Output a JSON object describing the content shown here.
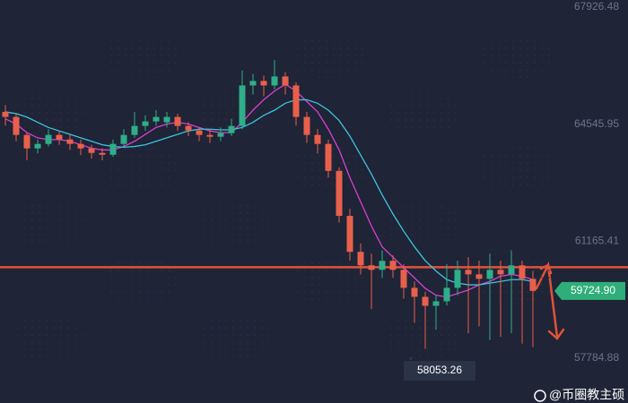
{
  "chart_data": {
    "type": "candlestick",
    "ylim": [
      56484.5,
      68134.5
    ],
    "yticks": [
      67926.48,
      64545.95,
      61165.41,
      57784.88
    ],
    "grid": false,
    "up_color": "#2fae8a",
    "down_color": "#e8604c",
    "candles": [
      [
        64900,
        65100,
        64500,
        64754
      ],
      [
        64754,
        64850,
        64050,
        64234
      ],
      [
        64234,
        64300,
        63500,
        63844
      ],
      [
        63844,
        64100,
        63700,
        63974
      ],
      [
        63974,
        64400,
        63900,
        64234
      ],
      [
        64234,
        64350,
        63950,
        64104
      ],
      [
        64104,
        64250,
        63800,
        63974
      ],
      [
        63974,
        64100,
        63650,
        63844
      ],
      [
        63844,
        63950,
        63550,
        63714
      ],
      [
        63714,
        63850,
        63500,
        63662
      ],
      [
        63662,
        64100,
        63600,
        63974
      ],
      [
        63974,
        64400,
        63900,
        64234
      ],
      [
        64234,
        64900,
        64150,
        64494
      ],
      [
        64494,
        64800,
        64350,
        64624
      ],
      [
        64624,
        64950,
        64500,
        64754
      ],
      [
        64600,
        64900,
        64450,
        64754
      ],
      [
        64754,
        64850,
        64350,
        64494
      ],
      [
        64494,
        64600,
        64200,
        64364
      ],
      [
        64364,
        64450,
        64050,
        64234
      ],
      [
        64234,
        64400,
        64000,
        64182
      ],
      [
        64182,
        64450,
        64050,
        64286
      ],
      [
        64286,
        64700,
        64200,
        64494
      ],
      [
        64494,
        66100,
        64400,
        65664
      ],
      [
        65664,
        66000,
        65400,
        65794
      ],
      [
        65794,
        65950,
        65350,
        65664
      ],
      [
        65664,
        66400,
        65550,
        65924
      ],
      [
        65924,
        66050,
        65400,
        65664
      ],
      [
        65664,
        65750,
        64500,
        64754
      ],
      [
        64754,
        64900,
        64000,
        64234
      ],
      [
        64234,
        64400,
        63700,
        63974
      ],
      [
        63974,
        64100,
        63000,
        63194
      ],
      [
        63194,
        63300,
        61700,
        61894
      ],
      [
        61894,
        62100,
        60600,
        60854
      ],
      [
        60854,
        61100,
        60200,
        60464
      ],
      [
        60464,
        60800,
        59200,
        60334
      ],
      [
        60334,
        60900,
        60100,
        60594
      ],
      [
        60594,
        60750,
        60100,
        60334
      ],
      [
        60334,
        60500,
        59500,
        59814
      ],
      [
        59814,
        60000,
        58800,
        59554
      ],
      [
        59554,
        59700,
        58053.26,
        59294
      ],
      [
        59294,
        59600,
        58600,
        59424
      ],
      [
        59424,
        60500,
        59300,
        59814
      ],
      [
        59814,
        60600,
        59600,
        60334
      ],
      [
        60334,
        60700,
        58500,
        60204
      ],
      [
        60204,
        60600,
        58700,
        60074
      ],
      [
        60074,
        60800,
        58300,
        60334
      ],
      [
        60334,
        60600,
        58400,
        60204
      ],
      [
        60204,
        60900,
        58500,
        60464
      ],
      [
        60464,
        60600,
        58200,
        60074
      ],
      [
        60074,
        60300,
        58100,
        59724.9
      ]
    ],
    "series": [
      {
        "color": "#d83fd0",
        "values": [
          64700,
          64550,
          64300,
          64150,
          64100,
          64100,
          64050,
          63950,
          63850,
          63800,
          63800,
          63900,
          64050,
          64250,
          64450,
          64550,
          64600,
          64550,
          64450,
          64350,
          64300,
          64300,
          64600,
          64950,
          65250,
          65500,
          65700,
          65500,
          65200,
          64900,
          64400,
          63800,
          63000,
          62300,
          61600,
          61000,
          60700,
          60400,
          60100,
          59800,
          59600,
          59550,
          59650,
          59750,
          59900,
          60000,
          60150,
          60200,
          60150,
          60050
        ]
      },
      {
        "color": "#3cc4de",
        "values": [
          64900,
          64850,
          64750,
          64600,
          64450,
          64350,
          64250,
          64150,
          64050,
          63950,
          63900,
          63880,
          63900,
          63950,
          64050,
          64150,
          64250,
          64350,
          64400,
          64400,
          64380,
          64380,
          64450,
          64600,
          64800,
          64950,
          65150,
          65250,
          65250,
          65150,
          64950,
          64650,
          64200,
          63650,
          63100,
          62500,
          61950,
          61450,
          61000,
          60600,
          60300,
          60050,
          59950,
          59900,
          59900,
          59950,
          60000,
          60050,
          60050,
          60000
        ]
      }
    ],
    "level": 60410,
    "level_color": "#e0533a",
    "last_price": {
      "value": 59724.9,
      "label": "59724.90"
    },
    "low_label": 58053.26
  },
  "watermark": "@币圈教主硕"
}
